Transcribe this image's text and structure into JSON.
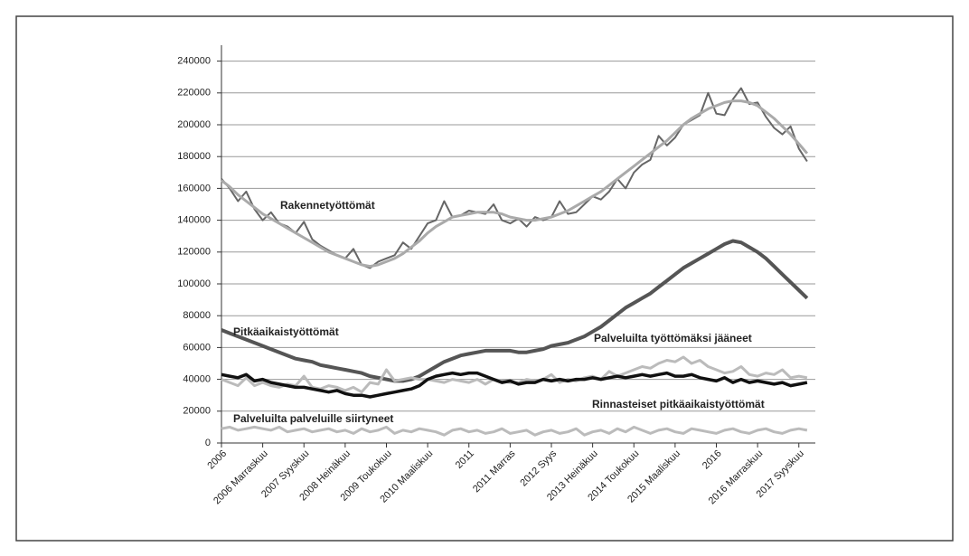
{
  "chart_data": {
    "type": "line",
    "categories": [
      "2006",
      null,
      null,
      null,
      null,
      "2006 Marraskuu",
      null,
      null,
      null,
      null,
      "2007 Syyskuu",
      null,
      null,
      null,
      null,
      "2008 Heinäkuu",
      null,
      null,
      null,
      null,
      "2009 Toukokuu",
      null,
      null,
      null,
      null,
      "2010 Maaliskuu",
      null,
      null,
      null,
      null,
      "2011",
      null,
      null,
      null,
      null,
      "2011 Marras",
      null,
      null,
      null,
      null,
      "2012 Syys",
      null,
      null,
      null,
      null,
      "2013 Heinäkuu",
      null,
      null,
      null,
      null,
      "2014 Toukokuu",
      null,
      null,
      null,
      null,
      "2015 Maaliskuu",
      null,
      null,
      null,
      null,
      "2016",
      null,
      null,
      null,
      null,
      "2016 Marraskuu",
      null,
      null,
      null,
      null,
      "2017 Syyskuu",
      null
    ],
    "ylim": [
      0,
      250000
    ],
    "yticks": [
      0,
      20000,
      40000,
      60000,
      80000,
      100000,
      120000,
      140000,
      160000,
      180000,
      200000,
      220000,
      240000
    ],
    "grid": true,
    "series": [
      {
        "name": "Rakennetyöttömät",
        "color": "#666666",
        "values": [
          166000,
          160000,
          152000,
          158000,
          147000,
          140000,
          145000,
          138000,
          136000,
          132000,
          139000,
          128000,
          124000,
          121000,
          118000,
          116000,
          122000,
          112000,
          110000,
          114000,
          116000,
          118000,
          126000,
          122000,
          130000,
          138000,
          140000,
          152000,
          142000,
          143000,
          146000,
          145000,
          144000,
          150000,
          140000,
          138000,
          141000,
          136000,
          142000,
          140000,
          142000,
          152000,
          144000,
          145000,
          150000,
          155000,
          153000,
          158000,
          166000,
          160000,
          170000,
          175000,
          178000,
          193000,
          187000,
          192000,
          200000,
          203000,
          206000,
          220000,
          207000,
          206000,
          216000,
          223000,
          213000,
          214000,
          205000,
          198000,
          194000,
          199000,
          185000,
          177000
        ]
      },
      {
        "color": "#aaaaaa",
        "values": [
          165000,
          161000,
          156000,
          152000,
          148000,
          144000,
          141000,
          138000,
          135000,
          132000,
          129000,
          126000,
          123000,
          120000,
          118000,
          116000,
          114000,
          112000,
          111000,
          112000,
          114000,
          116000,
          119000,
          123000,
          127000,
          132000,
          136000,
          139000,
          142000,
          143000,
          144000,
          145000,
          145000,
          145000,
          144000,
          142000,
          141000,
          140000,
          140000,
          141000,
          142000,
          144000,
          146000,
          149000,
          152000,
          155000,
          158000,
          162000,
          166000,
          170000,
          174000,
          178000,
          182000,
          186000,
          190000,
          195000,
          200000,
          204000,
          207000,
          210000,
          212000,
          214000,
          215000,
          215000,
          214000,
          212000,
          208000,
          204000,
          199000,
          194000,
          188000,
          182000
        ]
      },
      {
        "name": "Pitkäaikaistyöttömät",
        "color": "#555555",
        "values": [
          71000,
          69000,
          67000,
          65000,
          63000,
          61000,
          59000,
          57000,
          55000,
          53000,
          52000,
          51000,
          49000,
          48000,
          47000,
          46000,
          45000,
          44000,
          42000,
          41000,
          40000,
          39000,
          39000,
          40000,
          42000,
          45000,
          48000,
          51000,
          53000,
          55000,
          56000,
          57000,
          58000,
          58000,
          58000,
          58000,
          57000,
          57000,
          58000,
          59000,
          61000,
          62000,
          63000,
          65000,
          67000,
          70000,
          73000,
          77000,
          81000,
          85000,
          88000,
          91000,
          94000,
          98000,
          102000,
          106000,
          110000,
          113000,
          116000,
          119000,
          122000,
          125000,
          127000,
          126000,
          123000,
          120000,
          116000,
          111000,
          106000,
          101000,
          96000,
          91000
        ]
      },
      {
        "name": "Palveluilta työttömäksi jääneet",
        "color": "#bbbbbb",
        "values": [
          40000,
          38000,
          36000,
          41000,
          36000,
          38000,
          36000,
          35000,
          37000,
          36000,
          42000,
          35000,
          34000,
          36000,
          35000,
          33000,
          35000,
          32000,
          38000,
          37000,
          46000,
          39000,
          40000,
          41000,
          40000,
          40000,
          39000,
          38000,
          40000,
          39000,
          38000,
          40000,
          37000,
          40000,
          39000,
          38000,
          38000,
          40000,
          39000,
          40000,
          43000,
          38000,
          40000,
          39000,
          41000,
          42000,
          40000,
          45000,
          42000,
          44000,
          46000,
          48000,
          47000,
          50000,
          52000,
          51000,
          54000,
          50000,
          52000,
          48000,
          46000,
          44000,
          45000,
          48000,
          43000,
          42000,
          44000,
          43000,
          46000,
          41000,
          42000,
          41000
        ]
      },
      {
        "name": "Rinnasteiset pitkäaikaistyöttömät",
        "color": "#111111",
        "values": [
          43000,
          42000,
          41000,
          43000,
          39000,
          40000,
          38000,
          37000,
          36000,
          35000,
          35000,
          34000,
          33000,
          32000,
          33000,
          31000,
          30000,
          30000,
          29000,
          30000,
          31000,
          32000,
          33000,
          34000,
          36000,
          40000,
          42000,
          43000,
          44000,
          43000,
          44000,
          44000,
          42000,
          40000,
          38000,
          39000,
          37000,
          38000,
          38000,
          40000,
          39000,
          40000,
          39000,
          40000,
          40000,
          41000,
          40000,
          41000,
          42000,
          41000,
          42000,
          43000,
          42000,
          43000,
          44000,
          42000,
          42000,
          43000,
          41000,
          40000,
          39000,
          41000,
          38000,
          40000,
          38000,
          39000,
          38000,
          37000,
          38000,
          36000,
          37000,
          38000
        ]
      },
      {
        "name": "Palveluilta palveluille siirtyneet",
        "color": "#bbbbbb",
        "values": [
          9000,
          10000,
          8000,
          9000,
          10000,
          9000,
          8000,
          10000,
          7000,
          8000,
          9000,
          7000,
          8000,
          9000,
          7000,
          8000,
          6000,
          9000,
          7000,
          8000,
          10000,
          6000,
          8000,
          7000,
          9000,
          8000,
          7000,
          5000,
          8000,
          9000,
          7000,
          8000,
          6000,
          7000,
          9000,
          6000,
          7000,
          8000,
          5000,
          7000,
          8000,
          6000,
          7000,
          9000,
          5000,
          7000,
          8000,
          6000,
          9000,
          7000,
          10000,
          8000,
          6000,
          8000,
          9000,
          7000,
          6000,
          9000,
          8000,
          7000,
          6000,
          8000,
          9000,
          7000,
          6000,
          8000,
          9000,
          7000,
          6000,
          8000,
          9000,
          8000
        ]
      }
    ]
  }
}
